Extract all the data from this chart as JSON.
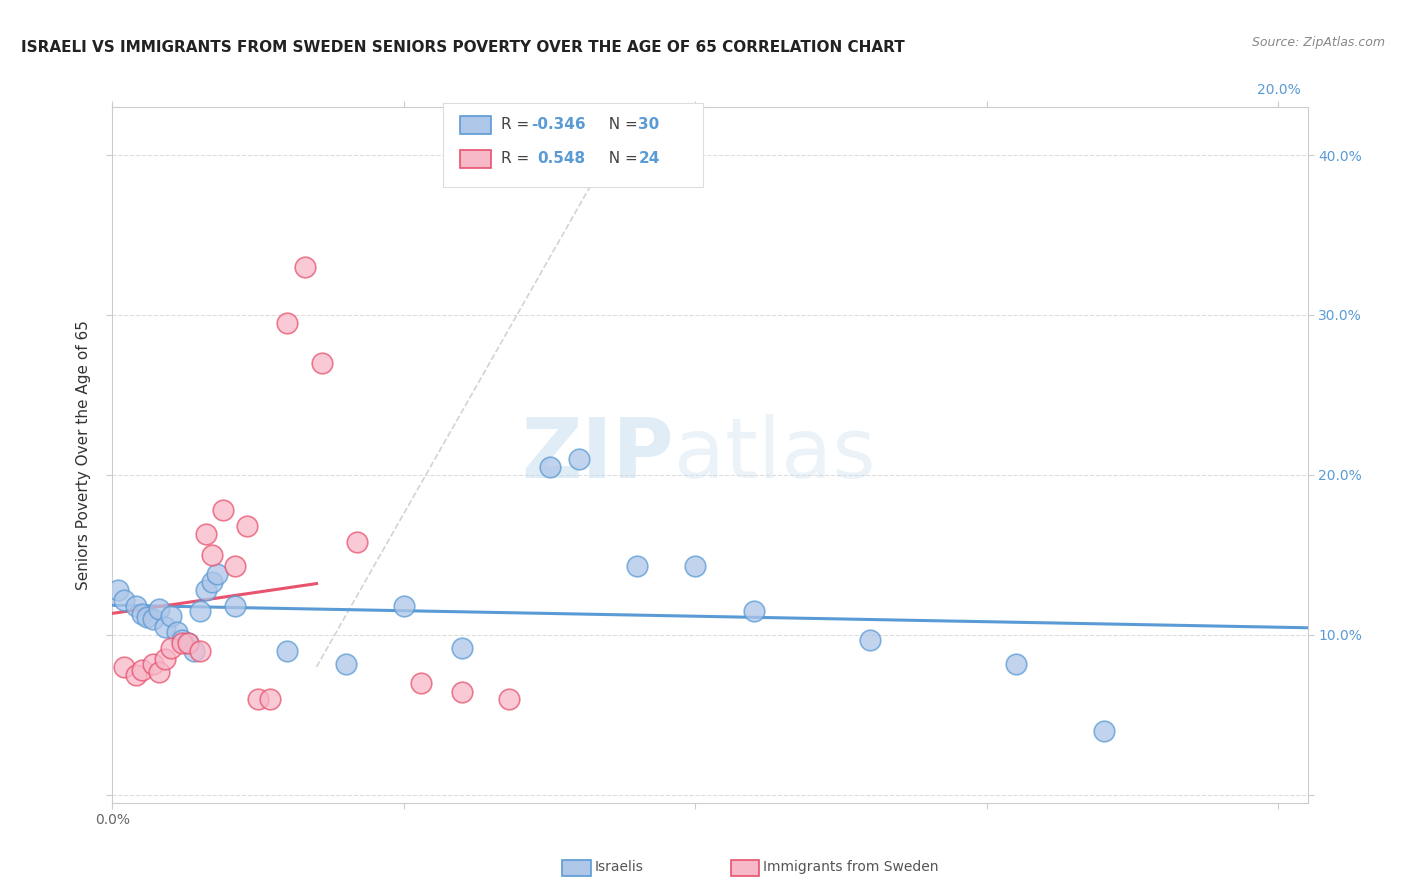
{
  "title": "ISRAELI VS IMMIGRANTS FROM SWEDEN SENIORS POVERTY OVER THE AGE OF 65 CORRELATION CHART",
  "source": "Source: ZipAtlas.com",
  "ylabel": "Seniors Poverty Over the Age of 65",
  "xlim": [
    0.0,
    0.205
  ],
  "ylim": [
    -0.005,
    0.43
  ],
  "xticks": [
    0.0,
    0.05,
    0.1,
    0.15,
    0.2
  ],
  "yticks": [
    0.0,
    0.1,
    0.2,
    0.3,
    0.4
  ],
  "grid_color": "#dddddd",
  "background_color": "#ffffff",
  "legend_r_israeli": "-0.346",
  "legend_n_israeli": "30",
  "legend_r_sweden": "0.548",
  "legend_n_sweden": "24",
  "israeli_color": "#aec6e8",
  "swedish_color": "#f7b8c8",
  "israeli_line_color": "#5b9bd5",
  "swedish_line_color": "#e8536e",
  "israelis_x": [
    0.001,
    0.002,
    0.004,
    0.005,
    0.006,
    0.007,
    0.008,
    0.009,
    0.01,
    0.011,
    0.012,
    0.013,
    0.014,
    0.015,
    0.016,
    0.017,
    0.018,
    0.021,
    0.03,
    0.04,
    0.05,
    0.06,
    0.075,
    0.08,
    0.09,
    0.1,
    0.11,
    0.13,
    0.155,
    0.17
  ],
  "israelis_y": [
    0.128,
    0.122,
    0.118,
    0.113,
    0.111,
    0.11,
    0.116,
    0.105,
    0.112,
    0.102,
    0.097,
    0.095,
    0.09,
    0.115,
    0.128,
    0.133,
    0.138,
    0.118,
    0.09,
    0.082,
    0.118,
    0.092,
    0.205,
    0.21,
    0.143,
    0.143,
    0.115,
    0.097,
    0.082,
    0.04
  ],
  "swedish_x": [
    0.002,
    0.004,
    0.005,
    0.007,
    0.008,
    0.009,
    0.01,
    0.012,
    0.013,
    0.015,
    0.016,
    0.017,
    0.019,
    0.021,
    0.023,
    0.025,
    0.027,
    0.03,
    0.033,
    0.036,
    0.042,
    0.053,
    0.06,
    0.068
  ],
  "swedish_y": [
    0.08,
    0.075,
    0.078,
    0.082,
    0.077,
    0.085,
    0.092,
    0.095,
    0.095,
    0.09,
    0.163,
    0.15,
    0.178,
    0.143,
    0.168,
    0.06,
    0.06,
    0.295,
    0.33,
    0.27,
    0.158,
    0.07,
    0.064,
    0.06
  ]
}
